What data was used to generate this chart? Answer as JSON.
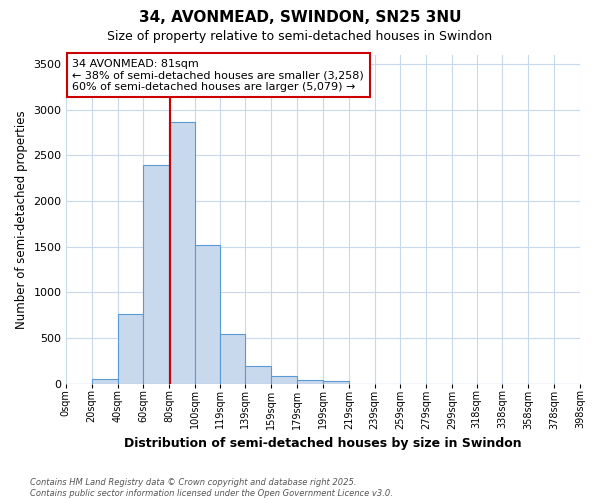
{
  "title1": "34, AVONMEAD, SWINDON, SN25 3NU",
  "title2": "Size of property relative to semi-detached houses in Swindon",
  "xlabel": "Distribution of semi-detached houses by size in Swindon",
  "ylabel": "Number of semi-detached properties",
  "bin_edges": [
    0,
    20,
    40,
    60,
    80,
    100,
    119,
    139,
    159,
    179,
    199,
    219,
    239,
    259,
    279,
    299,
    318,
    338,
    358,
    378,
    398
  ],
  "bar_heights": [
    0,
    55,
    760,
    2400,
    2870,
    1520,
    550,
    190,
    90,
    40,
    30,
    0,
    0,
    0,
    0,
    0,
    0,
    0,
    0,
    0
  ],
  "bar_color": "#c8d9ed",
  "bar_edge_color": "#5b9bd5",
  "grid_color": "#c8d9ed",
  "property_sqm": 81,
  "property_line_color": "#cc0000",
  "annotation_line1": "34 AVONMEAD: 81sqm",
  "annotation_line2": "← 38% of semi-detached houses are smaller (3,258)",
  "annotation_line3": "60% of semi-detached houses are larger (5,079) →",
  "annotation_box_facecolor": "#ffffff",
  "annotation_box_edgecolor": "#cc0000",
  "footer_text": "Contains HM Land Registry data © Crown copyright and database right 2025.\nContains public sector information licensed under the Open Government Licence v3.0.",
  "ylim_max": 3600,
  "yticks": [
    0,
    500,
    1000,
    1500,
    2000,
    2500,
    3000,
    3500
  ],
  "background_color": "#ffffff"
}
